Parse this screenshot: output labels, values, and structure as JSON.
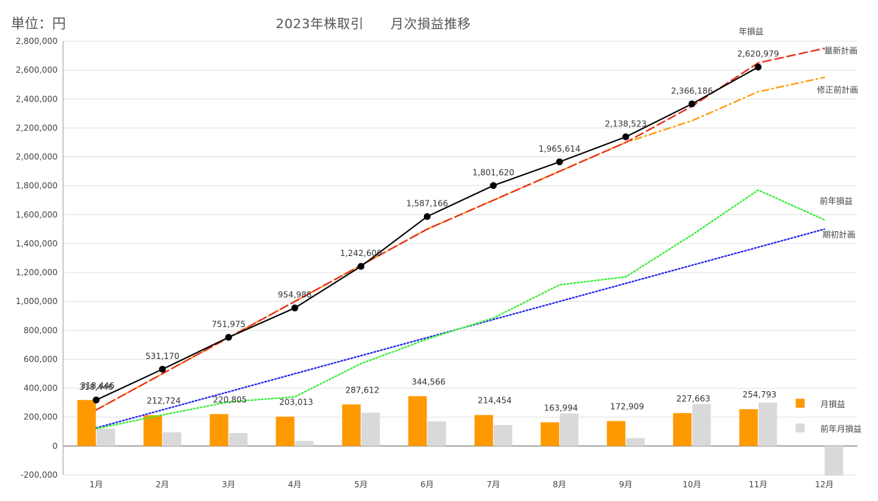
{
  "header": {
    "unit_label": "単位：円",
    "title": "2023年株取引　　月次損益推移"
  },
  "chart_data": {
    "type": "bar+line",
    "title": "2023年株取引　　月次損益推移",
    "unit_label": "単位：円",
    "categories": [
      "1月",
      "2月",
      "3月",
      "4月",
      "5月",
      "6月",
      "7月",
      "8月",
      "9月",
      "10月",
      "11月",
      "12月"
    ],
    "ylim": [
      -200000,
      2800000
    ],
    "yticks": [
      -200000,
      0,
      200000,
      400000,
      600000,
      800000,
      1000000,
      1200000,
      1400000,
      1600000,
      1800000,
      2000000,
      2200000,
      2400000,
      2600000,
      2800000
    ],
    "ytick_labels": [
      "-200,000",
      "0",
      "200,000",
      "400,000",
      "600,000",
      "800,000",
      "1,000,000",
      "1,200,000",
      "1,400,000",
      "1,600,000",
      "1,800,000",
      "2,000,000",
      "2,200,000",
      "2,400,000",
      "2,600,000",
      "2,800,000"
    ],
    "grid": true,
    "legend_position": "right",
    "bars": [
      {
        "name": "月損益",
        "color": "#FF9900",
        "values": [
          318446,
          212724,
          220805,
          203013,
          287612,
          344566,
          214454,
          163994,
          172909,
          227663,
          254793,
          null
        ],
        "labels": [
          "318,446",
          "212,724",
          "220,805",
          "203,013",
          "287,612",
          "344,566",
          "214,454",
          "163,994",
          "172,909",
          "227,663",
          "254,793",
          ""
        ]
      },
      {
        "name": "前年月損益",
        "color": "#D9D9D9",
        "values": [
          120000,
          95000,
          90000,
          35000,
          230000,
          170000,
          145000,
          225000,
          55000,
          290000,
          300000,
          -205000
        ]
      }
    ],
    "lines": [
      {
        "name": "年損益",
        "color": "#000000",
        "dash": "solid",
        "markers": true,
        "values": [
          318446,
          531170,
          751975,
          954988,
          1242600,
          1587166,
          1801620,
          1965614,
          2138523,
          2366186,
          2620979,
          null
        ],
        "labels": [
          "318,446",
          "531,170",
          "751,975",
          "954,988",
          "1,242,600",
          "1,587,166",
          "1,801,620",
          "1,965,614",
          "2,138,523",
          "2,366,186",
          "2,620,979",
          ""
        ]
      },
      {
        "name": "最新計画",
        "color": "#E62E1B",
        "dash": "long-dash",
        "values": [
          250000,
          500000,
          750000,
          1000000,
          1250000,
          1500000,
          1700000,
          1900000,
          2100000,
          2350000,
          2650000,
          2750000
        ]
      },
      {
        "name": "修正前計画",
        "color": "#FF9900",
        "dash": "dash-dot",
        "values": [
          250000,
          500000,
          750000,
          1000000,
          1250000,
          1500000,
          1700000,
          1900000,
          2100000,
          2250000,
          2450000,
          2550000
        ]
      },
      {
        "name": "前年損益",
        "color": "#33EE33",
        "dash": "dotted",
        "values": [
          120000,
          215000,
          305000,
          340000,
          570000,
          740000,
          885000,
          1115000,
          1170000,
          1460000,
          1770000,
          1565000
        ]
      },
      {
        "name": "期初計画",
        "color": "#2222EE",
        "dash": "dotted",
        "values": [
          125000,
          250000,
          375000,
          500000,
          625000,
          750000,
          875000,
          1000000,
          1125000,
          1250000,
          1375000,
          1500000
        ]
      }
    ]
  }
}
